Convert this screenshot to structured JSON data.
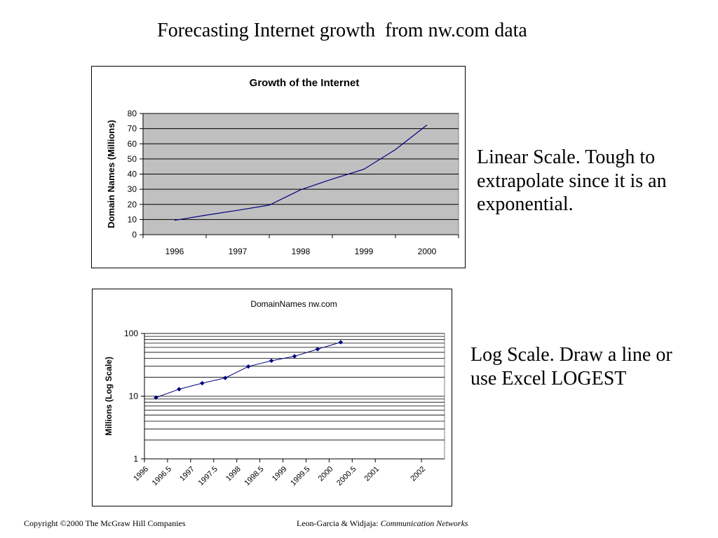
{
  "page": {
    "title": "Forecasting Internet growth  from nw.com data",
    "note_linear": "Linear Scale.  Tough to extrapolate since it is an exponential.",
    "note_log": "Log Scale.  Draw a line or use Excel LOGEST",
    "footer_left": "Copyright ©2000 The McGraw Hill Companies",
    "footer_right_author": "Leon-Garcia & Widjaja:  ",
    "footer_right_book": "Communication Networks"
  },
  "chart_data": [
    {
      "type": "line",
      "title": "Growth of the Internet",
      "xlabel": "",
      "ylabel": "Domain Names (Millions)",
      "categories": [
        "1996",
        "1997",
        "1998",
        "1999",
        "2000"
      ],
      "x": [
        1996,
        1996.5,
        1997,
        1997.5,
        1998,
        1998.5,
        1999,
        1999.5,
        2000
      ],
      "series": [
        {
          "values": [
            9.5,
            12.9,
            16.1,
            19.5,
            29.7,
            36.7,
            43.2,
            56.2,
            72.4
          ]
        }
      ],
      "ylim": [
        0,
        80
      ],
      "yticks": [
        "0",
        "10",
        "20",
        "30",
        "40",
        "50",
        "60",
        "70",
        "80"
      ],
      "grid": true,
      "plot_background": "#C0C0C0",
      "line_color": "#000080"
    },
    {
      "type": "scatter",
      "title": "DomainNames nw.com",
      "xlabel": "",
      "ylabel": "Millions (Log Scale)",
      "scale": "log",
      "x": [
        1996,
        1996.5,
        1997,
        1997.5,
        1998,
        1998.5,
        1999,
        1999.5,
        2000
      ],
      "series": [
        {
          "values": [
            9.5,
            12.9,
            16.1,
            19.5,
            29.7,
            36.7,
            43.2,
            56.2,
            72.4
          ]
        }
      ],
      "xticks": [
        "1996",
        "1996.5",
        "1997",
        "1997.5",
        "1998",
        "1998.5",
        "1999",
        "1999.5",
        "2000",
        "2000.5",
        "2001",
        "2002"
      ],
      "yticks": [
        "1",
        "10",
        "100"
      ],
      "ylim": [
        1,
        100
      ],
      "grid": true,
      "marker_color": "#000080"
    }
  ]
}
